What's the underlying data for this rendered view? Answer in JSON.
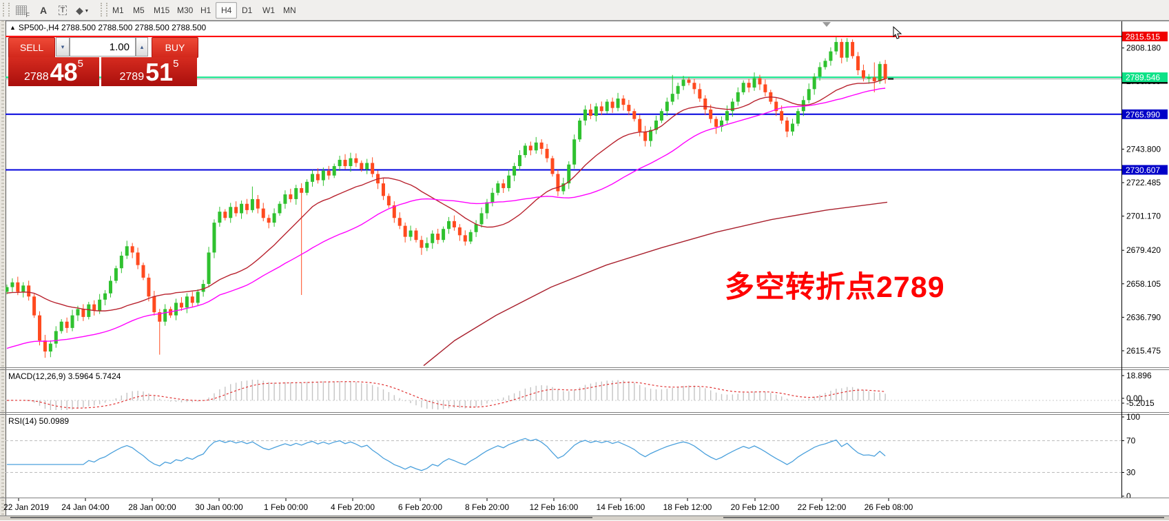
{
  "toolbar": {
    "icons": [
      {
        "name": "crosshair-grid-icon",
        "glyph": "F"
      },
      {
        "name": "text-label-icon",
        "glyph": "A"
      },
      {
        "name": "text-box-icon",
        "glyph": "T"
      },
      {
        "name": "drawing-tools-icon",
        "glyph": "◆",
        "caret": "▾"
      }
    ],
    "timeframes": [
      "M1",
      "M5",
      "M15",
      "M30",
      "H1",
      "H4",
      "D1",
      "W1",
      "MN"
    ],
    "active_timeframe": "H4"
  },
  "header": {
    "triangle": "▲",
    "symbol_line": "SP500-,H4  2788.500 2788.500 2788.500 2788.500"
  },
  "trade_panel": {
    "sell_label": "SELL",
    "buy_label": "BUY",
    "volume": "1.00",
    "spin_down": "▾",
    "spin_up": "▴",
    "sell_price_main": "2788",
    "sell_price_big": "48",
    "sell_price_sup": "5",
    "buy_price_main": "2789",
    "buy_price_big": "51",
    "buy_price_sup": "5"
  },
  "annotation": {
    "text": "多空转折点2789",
    "color": "#ff0000"
  },
  "chart_data": {
    "main": {
      "type": "candlestick",
      "symbol": "SP500-",
      "timeframe": "H4",
      "up_color": "#2fc12f",
      "down_color": "#ff4a1f",
      "y_ticks": [
        2808.18,
        2786.865,
        2743.8,
        2722.485,
        2701.17,
        2679.42,
        2658.105,
        2636.79,
        2615.475
      ],
      "hlines": [
        {
          "price": 2815.515,
          "color": "#ff0000",
          "badge": "2815.515",
          "badge_bg": "#f00000"
        },
        {
          "price": 2789.546,
          "color": "#0de287",
          "badge": "2789.546",
          "badge_bg": "#0de287"
        },
        {
          "price": 2765.99,
          "color": "#0000dc",
          "badge": "2765.990",
          "badge_bg": "#0000c8"
        },
        {
          "price": 2730.607,
          "color": "#0000dc",
          "badge": "2730.607",
          "badge_bg": "#0000c8"
        }
      ],
      "current_price": {
        "value": "2788.500",
        "price": 2788.5,
        "line_color": "#9a9a9a",
        "badge_bg": "#000000"
      },
      "x_labels": [
        "22 Jan 2019",
        "24 Jan 04:00",
        "28 Jan 00:00",
        "30 Jan 00:00",
        "1 Feb 00:00",
        "4 Feb 20:00",
        "6 Feb 20:00",
        "8 Feb 20:00",
        "12 Feb 16:00",
        "14 Feb 16:00",
        "18 Feb 12:00",
        "20 Feb 12:00",
        "22 Feb 12:00",
        "26 Feb 08:00"
      ],
      "first_open": 2653,
      "closes": [
        2656,
        2659,
        2653,
        2657,
        2650,
        2638,
        2622,
        2615,
        2620,
        2628,
        2634,
        2630,
        2638,
        2642,
        2637,
        2645,
        2641,
        2648,
        2652,
        2660,
        2668,
        2676,
        2682,
        2678,
        2670,
        2662,
        2650,
        2640,
        2634,
        2642,
        2638,
        2646,
        2643,
        2650,
        2646,
        2653,
        2658,
        2678,
        2697,
        2704,
        2700,
        2707,
        2703,
        2709,
        2705,
        2712,
        2706,
        2700,
        2697,
        2703,
        2709,
        2715,
        2712,
        2719,
        2716,
        2723,
        2728,
        2724,
        2730,
        2727,
        2733,
        2737,
        2733,
        2738,
        2735,
        2731,
        2735,
        2728,
        2722,
        2714,
        2708,
        2700,
        2695,
        2688,
        2692,
        2686,
        2681,
        2684,
        2690,
        2686,
        2693,
        2698,
        2694,
        2689,
        2685,
        2691,
        2696,
        2703,
        2710,
        2716,
        2722,
        2719,
        2727,
        2733,
        2740,
        2746,
        2743,
        2748,
        2744,
        2738,
        2728,
        2717,
        2722,
        2734,
        2750,
        2762,
        2769,
        2765,
        2771,
        2768,
        2774,
        2770,
        2776,
        2772,
        2768,
        2763,
        2755,
        2749,
        2756,
        2762,
        2768,
        2774,
        2779,
        2784,
        2788,
        2786,
        2782,
        2776,
        2769,
        2763,
        2758,
        2762,
        2768,
        2774,
        2780,
        2786,
        2783,
        2789,
        2785,
        2780,
        2774,
        2768,
        2762,
        2755,
        2760,
        2768,
        2775,
        2782,
        2790,
        2796,
        2800,
        2806,
        2812,
        2802,
        2812,
        2803,
        2794,
        2789,
        2789.5,
        2787,
        2798,
        2788.5
      ],
      "spikes": {
        "7": {
          "low": 2611
        },
        "22": {
          "high": 2685.5
        },
        "28": {
          "low": 2613
        },
        "45": {
          "high": 2720
        },
        "54": {
          "low": 2651
        },
        "63": {
          "high": 2741.5
        },
        "76": {
          "low": 2676.5
        },
        "97": {
          "high": 2751.5
        },
        "117": {
          "low": 2745.5
        },
        "122": {
          "high": 2791
        },
        "124": {
          "high": 2790.5
        },
        "130": {
          "low": 2753.5
        },
        "152": {
          "high": 2815
        },
        "154": {
          "high": 2814.5
        },
        "159": {
          "high": 2799,
          "low": 2780
        },
        "161": {
          "low": 2785.5
        }
      },
      "moving_averages": {
        "fast": {
          "period": 20,
          "color": "#b8222e",
          "pad": 2652
        },
        "mid": {
          "period": 40,
          "color": "#ff00ff",
          "pad": 2616
        },
        "long": {
          "color": "#a81f2c",
          "waypoints": [
            [
              615,
              2606
            ],
            [
              660,
              2622
            ],
            [
              720,
              2638
            ],
            [
              800,
              2656
            ],
            [
              880,
              2670
            ],
            [
              960,
              2681
            ],
            [
              1040,
              2691
            ],
            [
              1120,
              2699
            ],
            [
              1200,
              2705
            ],
            [
              1288,
              2710
            ]
          ]
        }
      }
    },
    "macd": {
      "type": "bar",
      "label": "MACD(12,26,9) 3.5964 5.7424",
      "params": [
        12,
        26,
        9
      ],
      "main_value": 3.5964,
      "signal_value": 5.7424,
      "scale_labels": [
        "18.896",
        "0.00",
        "-5.2015"
      ],
      "hist_color": "#c4c4c4",
      "signal_color": "#e03030"
    },
    "rsi": {
      "type": "line",
      "label": "RSI(14) 50.0989",
      "period": 14,
      "value": 50.0989,
      "levels": [
        100,
        70,
        30,
        0
      ],
      "line_color": "#4aa0dc",
      "level_line_color": "#bbbbbb"
    }
  }
}
